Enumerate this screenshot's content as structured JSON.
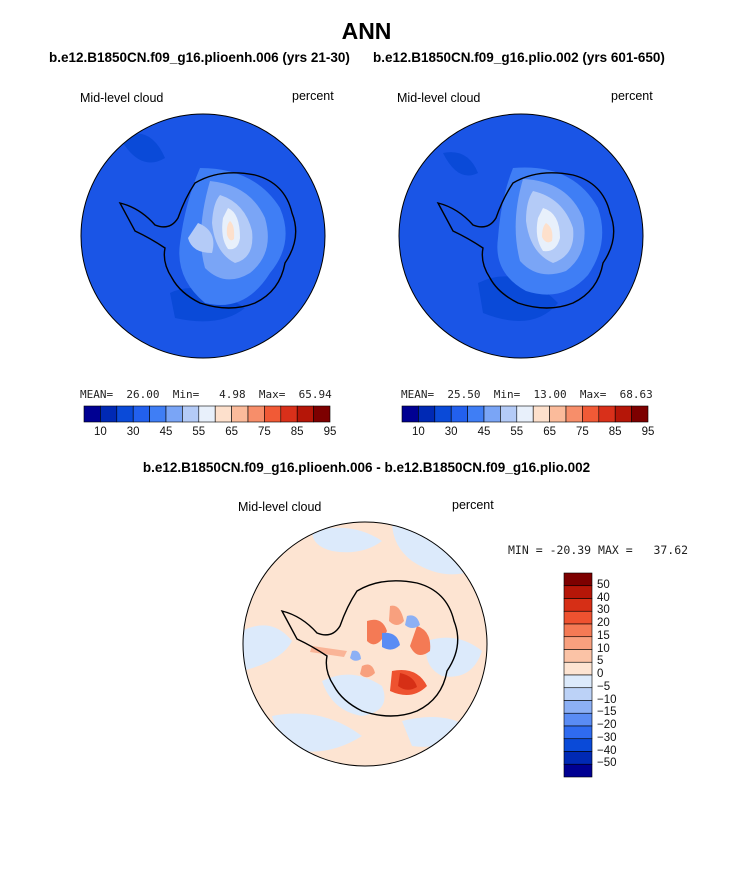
{
  "header": {
    "title": "ANN",
    "left_title": "b.e12.B1850CN.f09_g16.plioenh.006 (yrs 21-30)",
    "right_title": "b.e12.B1850CN.f09_g16.plio.002 (yrs 601-650)",
    "diff_title": "b.e12.B1850CN.f09_g16.plioenh.006 - b.e12.B1850CN.f09_g16.plio.002"
  },
  "colors": {
    "main_levels": [
      "#000092",
      "#0029b4",
      "#0a4ad8",
      "#2260ee",
      "#3f7ef5",
      "#7aa5f6",
      "#b4cbf7",
      "#e8f0fb",
      "#fde0cc",
      "#fbbb9b",
      "#f78e6a",
      "#f15a36",
      "#d9301a",
      "#b51608",
      "#7d0000"
    ],
    "diff_levels": [
      "#000092",
      "#0029b4",
      "#0a4ad8",
      "#2f6bf0",
      "#5a8cf4",
      "#8cb0f5",
      "#bcd2f7",
      "#dceafb",
      "#fde4d2",
      "#fbc3a6",
      "#f8a07e",
      "#f47a55",
      "#ee5230",
      "#d62f16",
      "#b51608",
      "#7d0000"
    ],
    "ocean_main": "#1a55e6",
    "diff_background": "#fde4d2"
  },
  "chart_data": [
    {
      "type": "heatmap",
      "projection": "south-polar-stereographic",
      "title": "b.e12.B1850CN.f09_g16.plioenh.006 (yrs 21-30)",
      "left_label": "Mid-level cloud",
      "right_label": "percent",
      "stats": {
        "mean_label": "MEAN=",
        "mean": "26.00",
        "min_label": "Min=",
        "min": "4.98",
        "max_label": "Max=",
        "max": "65.94"
      },
      "colorbar": {
        "orientation": "horizontal",
        "levels": [
          5,
          10,
          20,
          30,
          40,
          45,
          50,
          55,
          60,
          65,
          70,
          75,
          80,
          85,
          90,
          95
        ],
        "tick_labels": [
          "10",
          "30",
          "45",
          "55",
          "65",
          "75",
          "85",
          "95"
        ]
      }
    },
    {
      "type": "heatmap",
      "projection": "south-polar-stereographic",
      "title": "b.e12.B1850CN.f09_g16.plio.002 (yrs 601-650)",
      "left_label": "Mid-level cloud",
      "right_label": "percent",
      "stats": {
        "mean_label": "MEAN=",
        "mean": "25.50",
        "min_label": "Min=",
        "min": "13.00",
        "max_label": "Max=",
        "max": "68.63"
      },
      "colorbar": {
        "orientation": "horizontal",
        "levels": [
          5,
          10,
          20,
          30,
          40,
          45,
          50,
          55,
          60,
          65,
          70,
          75,
          80,
          85,
          90,
          95
        ],
        "tick_labels": [
          "10",
          "30",
          "45",
          "55",
          "65",
          "75",
          "85",
          "95"
        ]
      }
    },
    {
      "type": "heatmap",
      "projection": "south-polar-stereographic",
      "title": "b.e12.B1850CN.f09_g16.plioenh.006 - b.e12.B1850CN.f09_g16.plio.002",
      "left_label": "Mid-level cloud",
      "right_label": "percent",
      "stats": {
        "min_label": "MIN =",
        "min": "-20.39",
        "max_label": "MAX =",
        "max": "37.62"
      },
      "colorbar": {
        "orientation": "vertical",
        "tick_labels": [
          "50",
          "40",
          "30",
          "20",
          "15",
          "10",
          "5",
          "0",
          "−5",
          "−10",
          "−15",
          "−20",
          "−30",
          "−40",
          "−50"
        ]
      }
    }
  ]
}
